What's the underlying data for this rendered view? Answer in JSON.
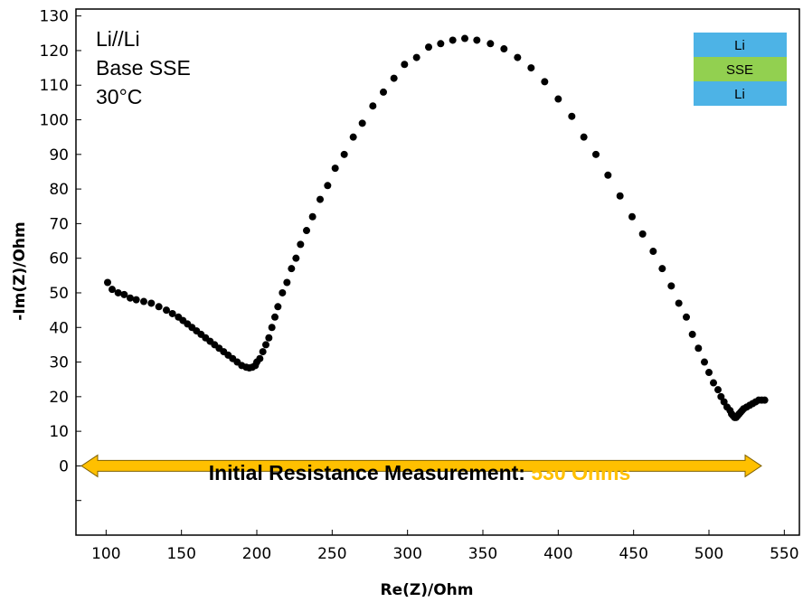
{
  "chart_data": {
    "type": "scatter",
    "xlabel": "Re(Z)/Ohm",
    "ylabel": "-Im(Z)/Ohm",
    "xlim": [
      80,
      560
    ],
    "ylim": [
      -20,
      132
    ],
    "xticks": [
      100,
      150,
      200,
      250,
      300,
      350,
      400,
      450,
      500,
      550
    ],
    "yticks": [
      0,
      10,
      20,
      30,
      40,
      50,
      60,
      70,
      80,
      90,
      100,
      110,
      120,
      130
    ],
    "grid": false,
    "inset_text": [
      "Li//Li",
      "Base SSE",
      "30°C"
    ],
    "legend": {
      "position": "top-right",
      "layers": [
        {
          "label": "Li",
          "color": "#4db3e6"
        },
        {
          "label": "SSE",
          "color": "#92d050"
        },
        {
          "label": "Li",
          "color": "#4db3e6"
        }
      ]
    },
    "annotation": {
      "text": "Initial Resistance Measurement:",
      "value": "530 Ohms",
      "value_color": "#ffc000",
      "arrow_color": "#ffc000",
      "arrow_from": 80,
      "arrow_to": 530,
      "arrow_y": 0
    },
    "marker_color": "#000000",
    "series": [
      {
        "x": [
          101,
          104,
          108,
          112,
          116,
          120,
          125,
          130,
          135,
          140,
          144,
          148,
          151,
          154,
          157,
          160,
          163,
          166,
          169,
          172,
          175,
          178,
          181,
          184,
          187,
          190,
          193,
          195,
          197,
          199,
          200,
          202,
          204,
          206,
          208,
          210,
          212,
          214,
          217,
          220,
          223,
          226,
          229,
          233,
          237,
          242,
          247,
          252,
          258,
          264,
          270,
          277,
          284,
          291,
          298,
          306,
          314,
          322,
          330,
          338,
          346,
          355,
          364,
          373,
          382,
          391,
          400,
          409,
          417,
          425,
          433,
          441,
          449,
          456,
          463,
          469,
          475,
          480,
          485,
          489,
          493,
          497,
          500,
          503,
          506,
          508,
          510,
          512,
          514,
          515,
          516,
          517,
          518,
          519,
          520,
          521,
          522,
          523,
          525,
          527,
          529,
          531,
          533,
          535,
          537
        ],
        "y": [
          53,
          51,
          50,
          49.5,
          48.5,
          48,
          47.5,
          47,
          46,
          45,
          44,
          43,
          42,
          41,
          40,
          39,
          38,
          37,
          36,
          35,
          34,
          33,
          32,
          31,
          30,
          29,
          28.5,
          28.3,
          28.5,
          29,
          30,
          31,
          33,
          35,
          37,
          40,
          43,
          46,
          50,
          53,
          57,
          60,
          64,
          68,
          72,
          77,
          81,
          86,
          90,
          95,
          99,
          104,
          108,
          112,
          116,
          118,
          121,
          122,
          123,
          123.5,
          123,
          122,
          120.5,
          118,
          115,
          111,
          106,
          101,
          95,
          90,
          84,
          78,
          72,
          67,
          62,
          57,
          52,
          47,
          43,
          38,
          34,
          30,
          27,
          24,
          22,
          20,
          18.5,
          17,
          16,
          15,
          14.5,
          14,
          14,
          14.5,
          15,
          15.5,
          16,
          16.5,
          17,
          17.5,
          18,
          18.5,
          19,
          19,
          19
        ]
      }
    ]
  }
}
